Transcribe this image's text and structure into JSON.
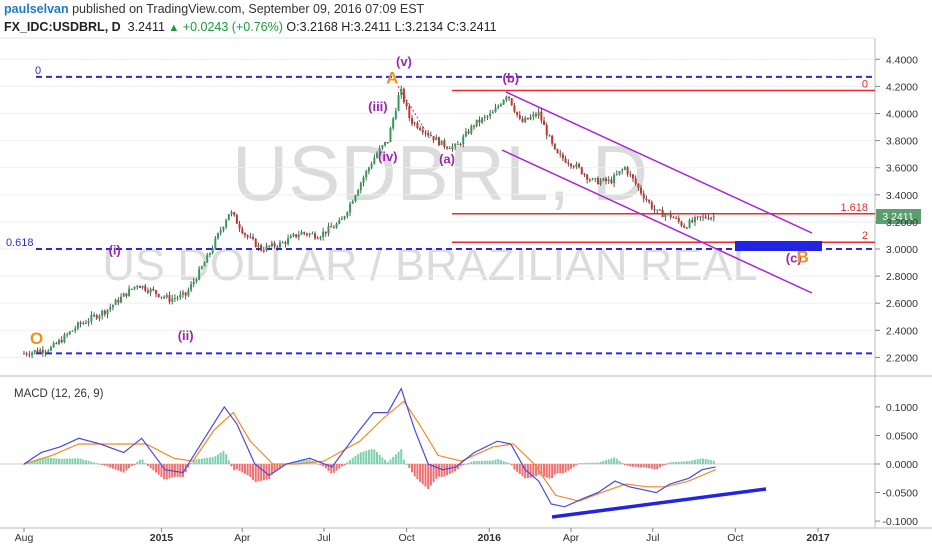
{
  "header": {
    "author": "paulselvan",
    "published_text": "published on TradingView.com, September 09, 2016 07:09 EST",
    "symbol": "FX_IDC:USDBRL, D",
    "last": "3.2411",
    "change": "+0.0243 (+0.76%)",
    "open_label": "O:",
    "open": "3.2168",
    "high_label": "H:",
    "high": "3.2411",
    "low_label": "L:",
    "low": "3.2134",
    "close_label": "C:",
    "close": "3.2411"
  },
  "watermark": {
    "symbol": "USDBRL, D",
    "description": "US DOLLAR / BRAZILIAN REAL"
  },
  "price_badge": "3.2411",
  "colors": {
    "up": "#2e9e57",
    "down": "#c8322f",
    "fib": "#2b2bd6",
    "channel": "#aa22d8",
    "level": "#e82c2c",
    "wave": "#9b27b0",
    "abc": "#f0901e",
    "macd": "#4a4ae0",
    "signal": "#f08b2a",
    "hist_up": "#7fd0b0",
    "hist_down": "#f07070"
  },
  "chart_data": [
    {
      "type": "candlestick",
      "title": "",
      "xlabel": "",
      "ylabel": "",
      "x_ticks": [
        "Aug",
        "2015",
        "Apr",
        "Jul",
        "Oct",
        "2016",
        "Apr",
        "Jul",
        "Oct",
        "2017"
      ],
      "y_ticks": [
        "4.4000",
        "4.2000",
        "4.0000",
        "3.8000",
        "3.6000",
        "3.4000",
        "3.2000",
        "3.0000",
        "2.8000",
        "2.6000",
        "2.4000",
        "2.2000"
      ],
      "ylim": [
        2.15,
        4.48
      ],
      "path_points": [
        {
          "date": "2014-08-01",
          "value": 2.23
        },
        {
          "date": "2014-09-01",
          "value": 2.27
        },
        {
          "date": "2014-10-01",
          "value": 2.44
        },
        {
          "date": "2014-11-01",
          "value": 2.55
        },
        {
          "date": "2014-12-05",
          "value": 2.74
        },
        {
          "date": "2015-01-10",
          "value": 2.63
        },
        {
          "date": "2015-01-28",
          "value": 2.66
        },
        {
          "date": "2015-02-20",
          "value": 2.92
        },
        {
          "date": "2015-03-18",
          "value": 3.28
        },
        {
          "date": "2015-04-05",
          "value": 3.1
        },
        {
          "date": "2015-04-22",
          "value": 3.0
        },
        {
          "date": "2015-05-15",
          "value": 3.04
        },
        {
          "date": "2015-06-05",
          "value": 3.12
        },
        {
          "date": "2015-06-25",
          "value": 3.1
        },
        {
          "date": "2015-07-20",
          "value": 3.2
        },
        {
          "date": "2015-08-10",
          "value": 3.48
        },
        {
          "date": "2015-08-28",
          "value": 3.7
        },
        {
          "date": "2015-09-10",
          "value": 3.8
        },
        {
          "date": "2015-09-24",
          "value": 4.18
        },
        {
          "date": "2015-10-05",
          "value": 3.95
        },
        {
          "date": "2015-10-20",
          "value": 3.88
        },
        {
          "date": "2015-11-10",
          "value": 3.77
        },
        {
          "date": "2015-11-25",
          "value": 3.75
        },
        {
          "date": "2015-12-15",
          "value": 3.92
        },
        {
          "date": "2016-01-05",
          "value": 4.0
        },
        {
          "date": "2016-01-21",
          "value": 4.15
        },
        {
          "date": "2016-02-05",
          "value": 3.93
        },
        {
          "date": "2016-02-25",
          "value": 4.0
        },
        {
          "date": "2016-03-15",
          "value": 3.7
        },
        {
          "date": "2016-04-05",
          "value": 3.62
        },
        {
          "date": "2016-04-25",
          "value": 3.5
        },
        {
          "date": "2016-05-15",
          "value": 3.5
        },
        {
          "date": "2016-05-31",
          "value": 3.6
        },
        {
          "date": "2016-06-20",
          "value": 3.4
        },
        {
          "date": "2016-07-05",
          "value": 3.27
        },
        {
          "date": "2016-07-20",
          "value": 3.25
        },
        {
          "date": "2016-08-05",
          "value": 3.17
        },
        {
          "date": "2016-08-20",
          "value": 3.22
        },
        {
          "date": "2016-09-01",
          "value": 3.24
        },
        {
          "date": "2016-09-09",
          "value": 3.24
        }
      ],
      "fib_levels": [
        {
          "label": "0",
          "value": 4.27
        },
        {
          "label": "0.618",
          "value": 3.0
        },
        {
          "label": "",
          "value": 2.23
        }
      ],
      "horizontal_levels": [
        {
          "label": "0",
          "value": 4.17
        },
        {
          "label": "1.618",
          "value": 3.26
        },
        {
          "label": "2",
          "value": 3.05
        }
      ],
      "wave_labels": [
        {
          "text": "(i)",
          "date": "2014-11-10",
          "value": 2.96
        },
        {
          "text": "(ii)",
          "date": "2015-01-28",
          "value": 2.33
        },
        {
          "text": "(iii)",
          "date": "2015-08-30",
          "value": 4.02
        },
        {
          "text": "(iv)",
          "date": "2015-09-10",
          "value": 3.65
        },
        {
          "text": "(v)",
          "date": "2015-09-28",
          "value": 4.35
        },
        {
          "text": "(a)",
          "date": "2015-11-15",
          "value": 3.63
        },
        {
          "text": "(b)",
          "date": "2016-01-25",
          "value": 4.23
        },
        {
          "text": "(c)",
          "date": "2016-12-05",
          "value": 2.9
        }
      ],
      "abc_labels": [
        {
          "text": "O",
          "date": "2014-08-15",
          "value": 2.3
        },
        {
          "text": "A",
          "date": "2015-09-15",
          "value": 4.22
        },
        {
          "text": "B",
          "date": "2016-12-15",
          "value": 2.9
        }
      ]
    },
    {
      "type": "line",
      "title": "MACD (12, 26, 9)",
      "xlabel": "",
      "ylabel": "",
      "y_ticks": [
        "0.1000",
        "0.0500",
        "0.0000",
        "-0.0500",
        "-0.1000"
      ],
      "ylim": [
        -0.105,
        0.14
      ],
      "series": [
        {
          "name": "MACD",
          "points": [
            {
              "date": "2014-08-01",
              "value": 0.0
            },
            {
              "date": "2014-08-20",
              "value": 0.02
            },
            {
              "date": "2014-09-10",
              "value": 0.03
            },
            {
              "date": "2014-10-01",
              "value": 0.045
            },
            {
              "date": "2014-10-25",
              "value": 0.035
            },
            {
              "date": "2014-11-20",
              "value": 0.02
            },
            {
              "date": "2014-12-10",
              "value": 0.045
            },
            {
              "date": "2015-01-05",
              "value": -0.01
            },
            {
              "date": "2015-01-25",
              "value": -0.015
            },
            {
              "date": "2015-02-20",
              "value": 0.05
            },
            {
              "date": "2015-03-12",
              "value": 0.1
            },
            {
              "date": "2015-03-26",
              "value": 0.07
            },
            {
              "date": "2015-04-15",
              "value": 0.0
            },
            {
              "date": "2015-05-01",
              "value": -0.02
            },
            {
              "date": "2015-05-20",
              "value": 0.0
            },
            {
              "date": "2015-06-15",
              "value": 0.01
            },
            {
              "date": "2015-07-10",
              "value": -0.005
            },
            {
              "date": "2015-08-05",
              "value": 0.05
            },
            {
              "date": "2015-08-25",
              "value": 0.09
            },
            {
              "date": "2015-09-10",
              "value": 0.09
            },
            {
              "date": "2015-09-25",
              "value": 0.132
            },
            {
              "date": "2015-10-10",
              "value": 0.06
            },
            {
              "date": "2015-10-25",
              "value": 0.0
            },
            {
              "date": "2015-11-10",
              "value": -0.01
            },
            {
              "date": "2015-11-25",
              "value": -0.005
            },
            {
              "date": "2015-12-15",
              "value": 0.02
            },
            {
              "date": "2016-01-10",
              "value": 0.04
            },
            {
              "date": "2016-01-25",
              "value": 0.035
            },
            {
              "date": "2016-02-10",
              "value": -0.01
            },
            {
              "date": "2016-02-25",
              "value": -0.03
            },
            {
              "date": "2016-03-10",
              "value": -0.07
            },
            {
              "date": "2016-03-25",
              "value": -0.075
            },
            {
              "date": "2016-04-15",
              "value": -0.06
            },
            {
              "date": "2016-05-01",
              "value": -0.05
            },
            {
              "date": "2016-05-20",
              "value": -0.03
            },
            {
              "date": "2016-06-05",
              "value": -0.04
            },
            {
              "date": "2016-06-20",
              "value": -0.045
            },
            {
              "date": "2016-07-05",
              "value": -0.05
            },
            {
              "date": "2016-07-20",
              "value": -0.035
            },
            {
              "date": "2016-08-10",
              "value": -0.025
            },
            {
              "date": "2016-08-25",
              "value": -0.01
            },
            {
              "date": "2016-09-09",
              "value": -0.005
            }
          ]
        },
        {
          "name": "Signal",
          "points": [
            {
              "date": "2014-08-01",
              "value": 0.0
            },
            {
              "date": "2014-09-01",
              "value": 0.015
            },
            {
              "date": "2014-10-01",
              "value": 0.035
            },
            {
              "date": "2014-11-05",
              "value": 0.035
            },
            {
              "date": "2014-12-15",
              "value": 0.035
            },
            {
              "date": "2015-01-15",
              "value": 0.01
            },
            {
              "date": "2015-02-05",
              "value": 0.005
            },
            {
              "date": "2015-03-01",
              "value": 0.06
            },
            {
              "date": "2015-03-22",
              "value": 0.09
            },
            {
              "date": "2015-04-10",
              "value": 0.04
            },
            {
              "date": "2015-05-05",
              "value": 0.0
            },
            {
              "date": "2015-06-01",
              "value": 0.0
            },
            {
              "date": "2015-07-01",
              "value": 0.005
            },
            {
              "date": "2015-08-10",
              "value": 0.04
            },
            {
              "date": "2015-09-05",
              "value": 0.08
            },
            {
              "date": "2015-09-28",
              "value": 0.11
            },
            {
              "date": "2015-10-15",
              "value": 0.07
            },
            {
              "date": "2015-11-05",
              "value": 0.015
            },
            {
              "date": "2015-12-01",
              "value": 0.005
            },
            {
              "date": "2016-01-05",
              "value": 0.03
            },
            {
              "date": "2016-01-28",
              "value": 0.035
            },
            {
              "date": "2016-02-20",
              "value": 0.0
            },
            {
              "date": "2016-03-15",
              "value": -0.055
            },
            {
              "date": "2016-04-10",
              "value": -0.065
            },
            {
              "date": "2016-05-05",
              "value": -0.05
            },
            {
              "date": "2016-06-01",
              "value": -0.035
            },
            {
              "date": "2016-06-25",
              "value": -0.04
            },
            {
              "date": "2016-07-15",
              "value": -0.04
            },
            {
              "date": "2016-08-10",
              "value": -0.03
            },
            {
              "date": "2016-09-09",
              "value": -0.01
            }
          ]
        }
      ]
    }
  ]
}
